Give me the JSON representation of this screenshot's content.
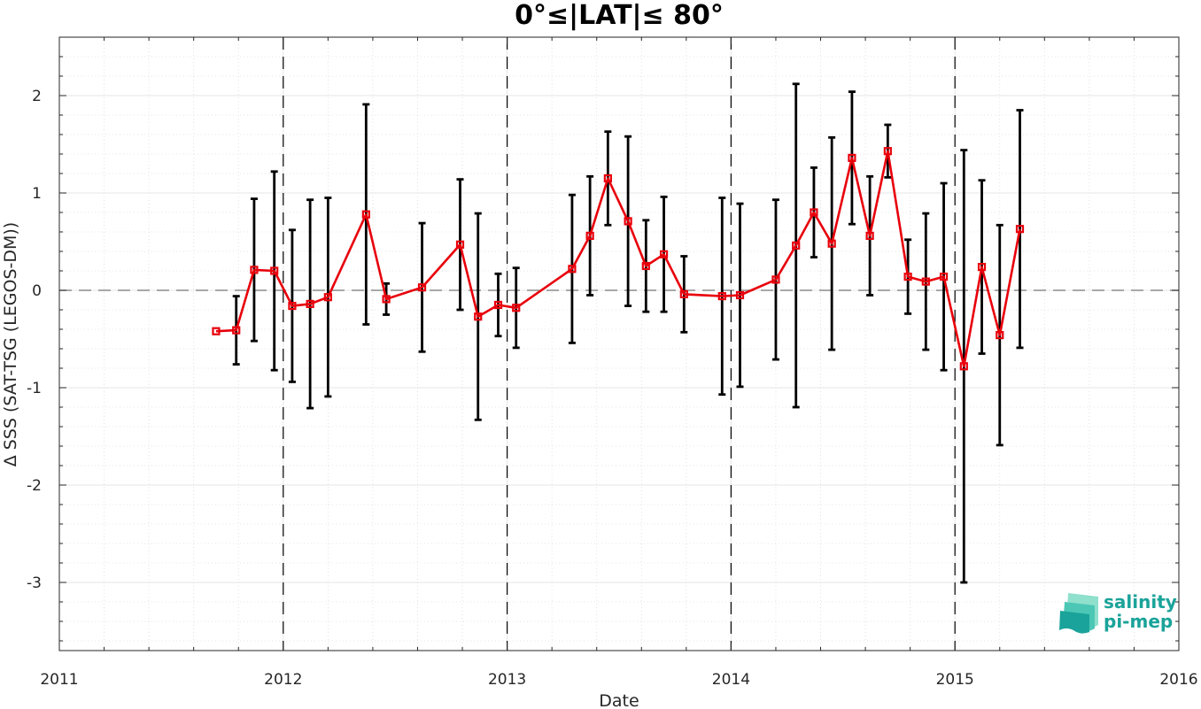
{
  "chart_data": {
    "type": "line",
    "title": "0°≤|LAT|≤ 80°",
    "xlabel": "Date",
    "ylabel": "Δ SSS (SAT-TSG (LEGOS-DM))",
    "xlim": [
      2011,
      2016
    ],
    "ylim": [
      -3.7,
      2.6
    ],
    "xticks": [
      "2011",
      "2012",
      "2013",
      "2014",
      "2015",
      "2016"
    ],
    "yticks": [
      "2",
      "1",
      "0",
      "-1",
      "-2",
      "-3"
    ],
    "grid": true,
    "zero_line": 0,
    "year_dividers": [
      2012,
      2013,
      2014,
      2015
    ],
    "series": [
      {
        "color": "#e8000b",
        "error_color": "#000000",
        "x": [
          2011.7,
          2011.79,
          2011.87,
          2011.96,
          2012.04,
          2012.12,
          2012.2,
          2012.37,
          2012.46,
          2012.62,
          2012.79,
          2012.87,
          2012.96,
          2013.04,
          2013.29,
          2013.37,
          2013.45,
          2013.54,
          2013.62,
          2013.7,
          2013.79,
          2013.96,
          2014.04,
          2014.2,
          2014.29,
          2014.37,
          2014.45,
          2014.54,
          2014.62,
          2014.7,
          2014.79,
          2014.87,
          2014.95,
          2015.04,
          2015.12,
          2015.2,
          2015.29
        ],
        "y": [
          -0.42,
          -0.41,
          0.21,
          0.2,
          -0.16,
          -0.14,
          -0.07,
          0.78,
          -0.09,
          0.03,
          0.47,
          -0.27,
          -0.15,
          -0.18,
          0.22,
          0.56,
          1.15,
          0.71,
          0.25,
          0.37,
          -0.04,
          -0.06,
          -0.05,
          0.11,
          0.46,
          0.8,
          0.48,
          1.36,
          0.56,
          1.43,
          0.14,
          0.09,
          0.14,
          -0.78,
          0.24,
          -0.46,
          0.63
        ],
        "err": [
          0.0,
          0.35,
          0.73,
          1.02,
          0.78,
          1.07,
          1.02,
          1.13,
          0.16,
          0.66,
          0.67,
          1.06,
          0.32,
          0.41,
          0.76,
          0.61,
          0.48,
          0.87,
          0.47,
          0.59,
          0.39,
          1.01,
          0.94,
          0.82,
          1.66,
          0.46,
          1.09,
          0.68,
          0.61,
          0.27,
          0.38,
          0.7,
          0.96,
          2.22,
          0.89,
          1.13,
          1.22
        ]
      }
    ]
  },
  "logo": {
    "line1": "salinity",
    "line2": "pi-mep",
    "colors": [
      "#1aa39a",
      "#4cc7b6",
      "#8fe0cc"
    ]
  }
}
